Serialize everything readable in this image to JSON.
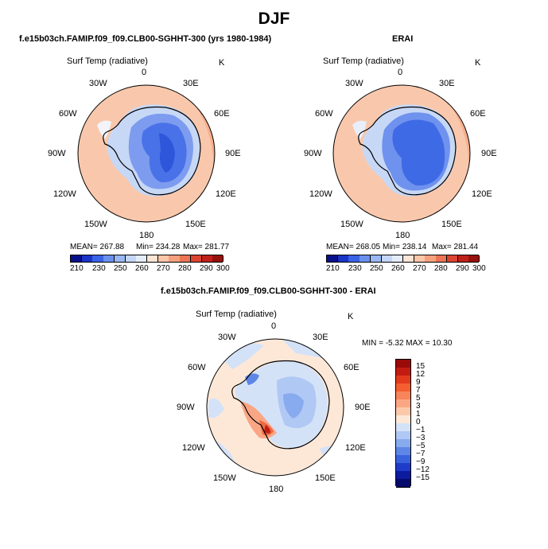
{
  "page_title": "DJF",
  "panels": [
    {
      "title": "f.e15b03ch.FAMIP.f09_f09.CLB00-SGHHT-300 (yrs 1980-1984)",
      "variable": "Surf Temp (radiative)",
      "units": "K",
      "stats": {
        "mean": "MEAN= 267.88",
        "min": "Min= 234.28",
        "max": "Max= 281.77"
      }
    },
    {
      "title": "ERAI",
      "variable": "Surf Temp (radiative)",
      "units": "K",
      "stats": {
        "mean": "MEAN= 268.05",
        "min": "Min= 238.14",
        "max": "Max= 281.44"
      }
    },
    {
      "title": "f.e15b03ch.FAMIP.f09_f09.CLB00-SGHHT-300 - ERAI",
      "variable": "Surf Temp (radiative)",
      "units": "K",
      "stats": {
        "minmax": "MIN =   -5.32  MAX =   10.30"
      }
    }
  ],
  "lon_labels": {
    "top": "0",
    "tr": "30E",
    "r1": "60E",
    "r2": "90E",
    "r3": "120E",
    "br": "150E",
    "bottom": "180",
    "bl": "150W",
    "l3": "120W",
    "l2": "90W",
    "l1": "60W",
    "tl": "30W"
  },
  "colorbar_abs": {
    "labels": [
      "210",
      "230",
      "250",
      "260",
      "270",
      "280",
      "290",
      "300"
    ],
    "colors": [
      "#08108a",
      "#1a34c8",
      "#3a62e6",
      "#6a90ee",
      "#9ab8f4",
      "#c4d6f6",
      "#e4ecf8",
      "#fde4d4",
      "#fac6a8",
      "#f5a07c",
      "#ec7456",
      "#dc4432",
      "#c0201a",
      "#96100c"
    ]
  },
  "colorbar_diff": {
    "labels": [
      "15",
      "12",
      "9",
      "7",
      "5",
      "3",
      "1",
      "0",
      "−1",
      "−3",
      "−5",
      "−7",
      "−9",
      "−12",
      "−15"
    ],
    "colors": [
      "#9a0a08",
      "#c21c12",
      "#e23a1c",
      "#f45e30",
      "#f8845a",
      "#faa684",
      "#fcc8aa",
      "#fde8d8",
      "#d4e2f8",
      "#b0c8f4",
      "#88aaee",
      "#5e86e6",
      "#3a62dc",
      "#1e3cc8",
      "#0c1a9e",
      "#060a6a"
    ]
  },
  "colors": {
    "ocean": "#f9c7ab",
    "ocean_warm": "#f29a76",
    "ice_cold": "#3f6fe6",
    "land_line": "#000000"
  }
}
